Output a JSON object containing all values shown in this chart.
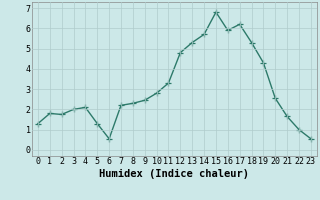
{
  "x": [
    0,
    1,
    2,
    3,
    4,
    5,
    6,
    7,
    8,
    9,
    10,
    11,
    12,
    13,
    14,
    15,
    16,
    17,
    18,
    19,
    20,
    21,
    22,
    23
  ],
  "y": [
    1.3,
    1.8,
    1.75,
    2.0,
    2.1,
    1.3,
    0.55,
    2.2,
    2.3,
    2.45,
    2.8,
    3.3,
    4.8,
    5.3,
    5.7,
    6.8,
    5.9,
    6.2,
    5.3,
    4.3,
    2.55,
    1.65,
    1.0,
    0.55
  ],
  "xlabel": "Humidex (Indice chaleur)",
  "xlim": [
    -0.5,
    23.5
  ],
  "ylim": [
    -0.3,
    7.3
  ],
  "yticks": [
    0,
    1,
    2,
    3,
    4,
    5,
    6,
    7
  ],
  "xticks": [
    0,
    1,
    2,
    3,
    4,
    5,
    6,
    7,
    8,
    9,
    10,
    11,
    12,
    13,
    14,
    15,
    16,
    17,
    18,
    19,
    20,
    21,
    22,
    23
  ],
  "line_color": "#2d7a6a",
  "marker": "+",
  "marker_size": 4,
  "line_width": 1.0,
  "bg_color": "#cce8e8",
  "grid_color": "#b0cccc",
  "tick_label_fontsize": 6.0,
  "xlabel_fontsize": 7.5
}
